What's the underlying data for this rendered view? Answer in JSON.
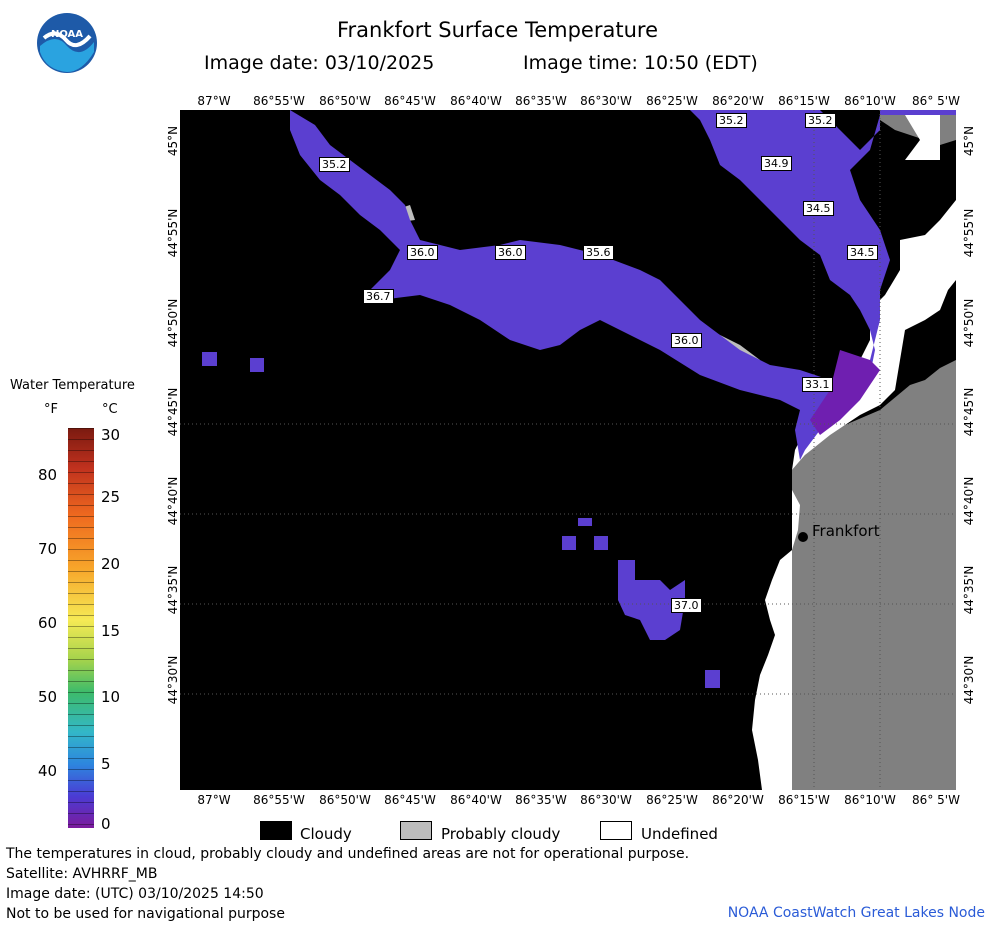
{
  "header": {
    "title": "Frankfort Surface Temperature",
    "image_date": "Image date: 03/10/2025",
    "image_time": "Image time: 10:50 (EDT)"
  },
  "logo": {
    "text": "NOAA"
  },
  "longitude_labels": [
    "87°W",
    "86°55'W",
    "86°50'W",
    "86°45'W",
    "86°40'W",
    "86°35'W",
    "86°30'W",
    "86°25'W",
    "86°20'W",
    "86°15'W",
    "86°10'W",
    "86° 5'W"
  ],
  "latitude_labels": [
    "45°N",
    "44°55'N",
    "44°50'N",
    "44°45'N",
    "44°40'N",
    "44°35'N",
    "44°30'N"
  ],
  "scale": {
    "title": "Water Temperature",
    "unit_f": "°F",
    "unit_c": "°C",
    "f_ticks": [
      "80",
      "70",
      "60",
      "50",
      "40"
    ],
    "c_ticks": [
      "30",
      "25",
      "20",
      "15",
      "10",
      "5",
      "0"
    ]
  },
  "temperature_labels": [
    "35.2",
    "35.2",
    "35.2",
    "34.9",
    "34.5",
    "34.5",
    "36.0",
    "36.0",
    "35.6",
    "36.7",
    "36.0",
    "33.1",
    "37.0"
  ],
  "city": {
    "name": "Frankfort"
  },
  "legend": {
    "cloudy": "Cloudy",
    "probably_cloudy": "Probably cloudy",
    "undefined": "Undefined"
  },
  "footer": {
    "disclaimer": "The temperatures in cloud, probably cloudy and undefined areas are not for operational purpose.",
    "satellite": "Satellite: AVHRRF_MB",
    "utc_date": "Image date: (UTC) 03/10/2025  14:50",
    "nav_warning": "Not to be used for navigational purpose",
    "credit": "NOAA CoastWatch Great Lakes Node"
  },
  "colors": {
    "cloudy": "#000000",
    "probably_cloudy": "#bdbdbd",
    "undefined": "#ffffff",
    "land": "#808080",
    "water_cold": "#5b3fd0"
  }
}
